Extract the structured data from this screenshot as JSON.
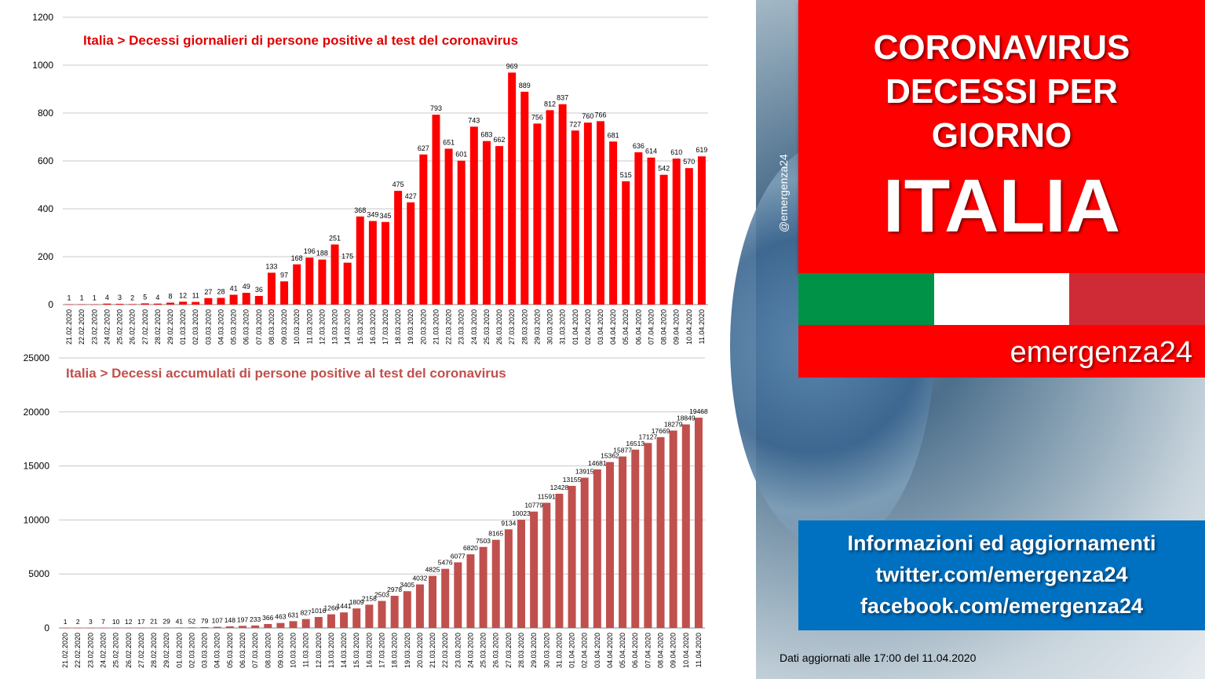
{
  "chart_data": [
    {
      "type": "bar",
      "title": "Italia > Decessi giornalieri di persone positive al test del coronavirus",
      "color": "#ff0000",
      "title_color": "#e00000",
      "ylim": [
        0,
        1200
      ],
      "yticks": [
        0,
        200,
        400,
        600,
        800,
        1000,
        1200
      ],
      "grid": true,
      "categories": [
        "21.02.2020",
        "22.02.2020",
        "23.02.2020",
        "24.02.2020",
        "25.02.2020",
        "26.02.2020",
        "27.02.2020",
        "28.02.2020",
        "29.02.2020",
        "01.03.2020",
        "02.03.2020",
        "03.03.2020",
        "04.03.2020",
        "05.03.2020",
        "06.03.2020",
        "07.03.2020",
        "08.03.2020",
        "09.03.2020",
        "10.03.2020",
        "11.03.2020",
        "12.03.2020",
        "13.03.2020",
        "14.03.2020",
        "15.03.2020",
        "16.03.2020",
        "17.03.2020",
        "18.03.2020",
        "19.03.2020",
        "20.03.2020",
        "21.03.2020",
        "22.03.2020",
        "23.03.2020",
        "24.03.2020",
        "25.03.2020",
        "26.03.2020",
        "27.03.2020",
        "28.03.2020",
        "29.03.2020",
        "30.03.2020",
        "31.03.2020",
        "01.04.2020",
        "02.04.2020",
        "03.04.2020",
        "04.04.2020",
        "05.04.2020",
        "06.04.2020",
        "07.04.2020",
        "08.04.2020",
        "09.04.2020",
        "10.04.2020",
        "11.04.2020"
      ],
      "values": [
        1,
        1,
        1,
        4,
        3,
        2,
        5,
        4,
        8,
        12,
        11,
        27,
        28,
        41,
        49,
        36,
        133,
        97,
        168,
        196,
        188,
        251,
        175,
        368,
        349,
        345,
        475,
        427,
        627,
        793,
        651,
        601,
        743,
        683,
        662,
        969,
        889,
        756,
        812,
        837,
        727,
        760,
        766,
        681,
        515,
        636,
        614,
        542,
        610,
        570,
        619
      ]
    },
    {
      "type": "bar",
      "title": "Italia > Decessi accumulati di persone positive al test del coronavirus",
      "color": "#c0504d",
      "title_color": "#c0504d",
      "ylim": [
        0,
        25000
      ],
      "yticks": [
        0,
        5000,
        10000,
        15000,
        20000,
        25000
      ],
      "grid": true,
      "categories": [
        "21.02.2020",
        "22.02.2020",
        "23.02.2020",
        "24.02.2020",
        "25.02.2020",
        "26.02.2020",
        "27.02.2020",
        "28.02.2020",
        "29.02.2020",
        "01.03.2020",
        "02.03.2020",
        "03.03.2020",
        "04.03.2020",
        "05.03.2020",
        "06.03.2020",
        "07.03.2020",
        "08.03.2020",
        "09.03.2020",
        "10.03.2020",
        "11.03.2020",
        "12.03.2020",
        "13.03.2020",
        "14.03.2020",
        "15.03.2020",
        "16.03.2020",
        "17.03.2020",
        "18.03.2020",
        "19.03.2020",
        "20.03.2020",
        "21.03.2020",
        "22.03.2020",
        "23.03.2020",
        "24.03.2020",
        "25.03.2020",
        "26.03.2020",
        "27.03.2020",
        "28.03.2020",
        "29.03.2020",
        "30.03.2020",
        "31.03.2020",
        "01.04.2020",
        "02.04.2020",
        "03.04.2020",
        "04.04.2020",
        "05.04.2020",
        "06.04.2020",
        "07.04.2020",
        "08.04.2020",
        "09.04.2020",
        "10.04.2020",
        "11.04.2020"
      ],
      "values": [
        1,
        2,
        3,
        7,
        10,
        12,
        17,
        21,
        29,
        41,
        52,
        79,
        107,
        148,
        197,
        233,
        366,
        463,
        631,
        827,
        1016,
        1266,
        1441,
        1809,
        2158,
        2503,
        2978,
        3405,
        4032,
        4825,
        5476,
        6077,
        6820,
        7503,
        8165,
        9134,
        10023,
        10779,
        11591,
        12428,
        13155,
        13915,
        14681,
        15362,
        15877,
        16513,
        17127,
        17669,
        18279,
        18849,
        19468
      ]
    }
  ],
  "panel": {
    "title_line1": "CORONAVIRUS",
    "title_line2": "DECESSI PER",
    "title_line3": "GIORNO",
    "country": "ITALIA",
    "brand": "emergenza24",
    "handle": "@emergenza24",
    "info_line1": "Informazioni ed aggiornamenti",
    "info_line2": "twitter.com/emergenza24",
    "info_line3": "facebook.com/emergenza24",
    "updated": "Dati aggiornati alle 17:00 del 11.04.2020"
  },
  "colors": {
    "red_box": "#ff0000",
    "blue_box": "#0070c0",
    "flag_green": "#009246",
    "flag_white": "#ffffff",
    "flag_red": "#ce2b37"
  }
}
